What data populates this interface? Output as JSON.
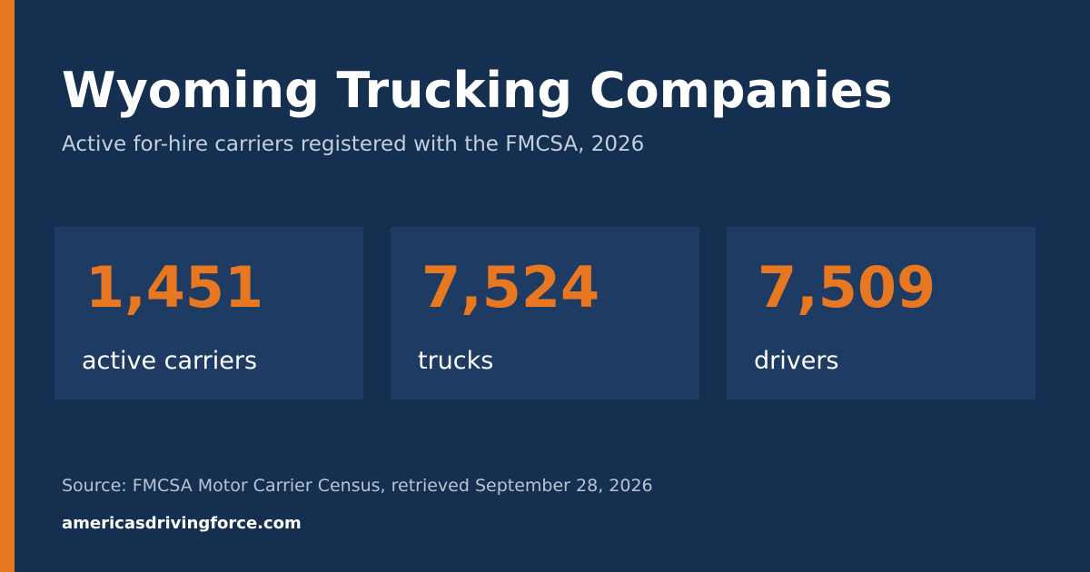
{
  "header": {
    "title": "Wyoming Trucking Companies",
    "subtitle": "Active for-hire carriers registered with the FMCSA, 2026"
  },
  "stats": [
    {
      "value": "1,451",
      "label": "active carriers"
    },
    {
      "value": "7,524",
      "label": "trucks"
    },
    {
      "value": "7,509",
      "label": "drivers"
    }
  ],
  "footer": {
    "source": "Source: FMCSA Motor Carrier Census, retrieved September 28, 2026",
    "site": "americasdrivingforce.com"
  }
}
